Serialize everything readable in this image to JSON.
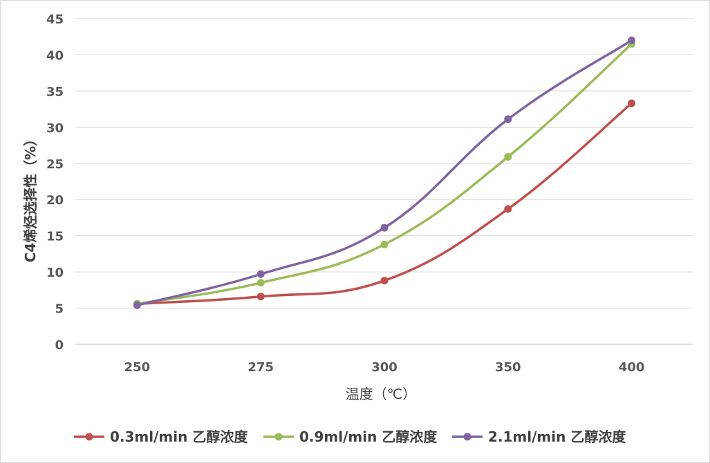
{
  "chart_data": {
    "type": "line",
    "smooth": true,
    "categories": [
      "250",
      "275",
      "300",
      "350",
      "400"
    ],
    "xlabel": "温度（℃）",
    "ylabel": "C4烯烃选择性（%）",
    "ylim": [
      0,
      45
    ],
    "yticks": [
      0,
      5,
      10,
      15,
      20,
      25,
      30,
      35,
      40,
      45
    ],
    "grid": true,
    "legend_position": "bottom",
    "series": [
      {
        "name": "0.3ml/min 乙醇浓度",
        "color": "#c0504d",
        "values": [
          5.6,
          6.6,
          8.8,
          18.7,
          33.3
        ]
      },
      {
        "name": "0.9ml/min 乙醇浓度",
        "color": "#9bbb59",
        "values": [
          5.6,
          8.5,
          13.8,
          25.9,
          41.5
        ]
      },
      {
        "name": "2.1ml/min 乙醇浓度",
        "color": "#8064a2",
        "values": [
          5.4,
          9.7,
          16.1,
          31.1,
          42.0
        ]
      }
    ]
  }
}
